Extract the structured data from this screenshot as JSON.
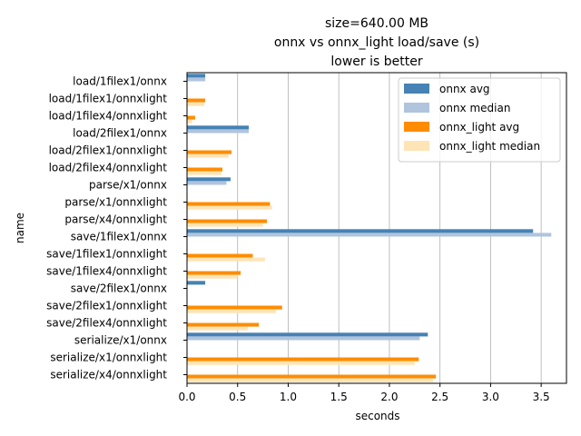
{
  "chart_data": {
    "type": "bar",
    "orientation": "horizontal",
    "title_lines": [
      "size=640.00 MB",
      "onnx vs onnx_light load/save (s)",
      "lower is better"
    ],
    "xlabel": "seconds",
    "ylabel": "name",
    "xlim": [
      0,
      3.75
    ],
    "xticks": [
      "0.0",
      "0.5",
      "1.0",
      "1.5",
      "2.0",
      "2.5",
      "3.0",
      "3.5"
    ],
    "grid": "vertical",
    "legend_position": "top-right",
    "categories": [
      "load/1filex1/onnx",
      "load/1filex1/onnxlight",
      "load/1filex4/onnxlight",
      "load/2filex1/onnx",
      "load/2filex1/onnxlight",
      "load/2filex4/onnxlight",
      "parse/x1/onnx",
      "parse/x1/onnxlight",
      "parse/x4/onnxlight",
      "save/1filex1/onnx",
      "save/1filex1/onnxlight",
      "save/1filex4/onnxlight",
      "save/2filex1/onnx",
      "save/2filex1/onnxlight",
      "save/2filex4/onnxlight",
      "serialize/x1/onnx",
      "serialize/x1/onnxlight",
      "serialize/x4/onnxlight"
    ],
    "series": [
      {
        "name": "onnx avg",
        "color": "#4682b4",
        "values": [
          0.18,
          null,
          null,
          0.61,
          null,
          null,
          0.43,
          null,
          null,
          3.42,
          null,
          null,
          0.18,
          null,
          null,
          2.38,
          null,
          null
        ]
      },
      {
        "name": "onnx median",
        "color": "#b0c4de",
        "values": [
          0.18,
          null,
          null,
          0.61,
          null,
          null,
          0.39,
          null,
          null,
          3.6,
          null,
          null,
          0.0,
          null,
          null,
          2.3,
          null,
          null
        ]
      },
      {
        "name": "onnx_light avg",
        "color": "#ff8c00",
        "values": [
          null,
          0.18,
          0.08,
          null,
          0.44,
          0.35,
          null,
          0.82,
          0.79,
          null,
          0.65,
          0.53,
          null,
          0.94,
          0.71,
          null,
          2.29,
          2.46
        ]
      },
      {
        "name": "onnx_light median",
        "color": "#ffe4b5",
        "values": [
          null,
          0.17,
          0.05,
          null,
          0.41,
          0.34,
          null,
          0.84,
          0.75,
          null,
          0.77,
          0.5,
          null,
          0.88,
          0.6,
          null,
          2.25,
          2.43
        ]
      }
    ]
  }
}
